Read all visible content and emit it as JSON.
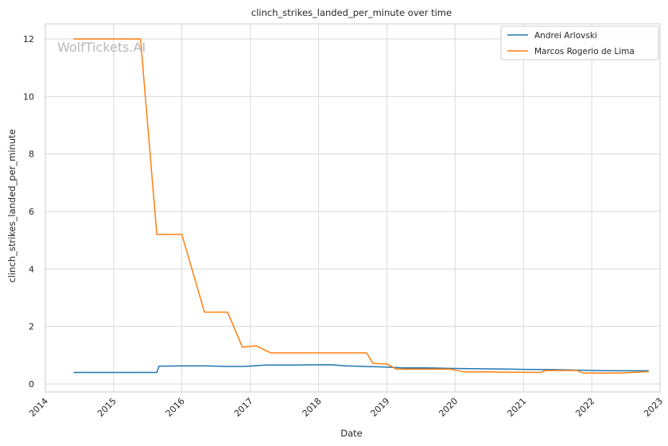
{
  "chart_data": {
    "type": "line",
    "title": "clinch_strikes_landed_per_minute over time",
    "xlabel": "Date",
    "ylabel": "clinch_strikes_landed_per_minute",
    "watermark": "WolfTickets.AI",
    "xlim": [
      "2014-01-01",
      "2023-01-01"
    ],
    "ylim": [
      0,
      12
    ],
    "x_ticks": [
      "2014",
      "2015",
      "2016",
      "2017",
      "2018",
      "2019",
      "2020",
      "2021",
      "2022",
      "2023"
    ],
    "y_ticks": [
      "0",
      "2",
      "4",
      "6",
      "8",
      "10",
      "12"
    ],
    "grid": true,
    "legend_position": "top-right",
    "series": [
      {
        "name": "Andrei Arlovski",
        "color": "#1f77b4",
        "points": [
          [
            "2014-06-01",
            0.4
          ],
          [
            "2015-06-01",
            0.4
          ],
          [
            "2015-08-20",
            0.4
          ],
          [
            "2015-09-01",
            0.62
          ],
          [
            "2016-01-01",
            0.63
          ],
          [
            "2016-05-01",
            0.63
          ],
          [
            "2016-09-01",
            0.61
          ],
          [
            "2016-12-01",
            0.61
          ],
          [
            "2017-04-01",
            0.66
          ],
          [
            "2017-09-01",
            0.66
          ],
          [
            "2018-03-01",
            0.67
          ],
          [
            "2018-06-01",
            0.63
          ],
          [
            "2018-09-01",
            0.61
          ],
          [
            "2019-01-01",
            0.59
          ],
          [
            "2019-04-01",
            0.56
          ],
          [
            "2019-08-01",
            0.56
          ],
          [
            "2020-01-01",
            0.54
          ],
          [
            "2020-10-01",
            0.52
          ],
          [
            "2021-01-01",
            0.51
          ],
          [
            "2021-06-01",
            0.5
          ],
          [
            "2022-01-01",
            0.47
          ],
          [
            "2022-06-01",
            0.46
          ],
          [
            "2022-11-01",
            0.46
          ]
        ]
      },
      {
        "name": "Marcos Rogerio de Lima",
        "color": "#ff7f0e",
        "points": [
          [
            "2014-06-01",
            12.0
          ],
          [
            "2015-05-25",
            12.0
          ],
          [
            "2015-08-20",
            5.2
          ],
          [
            "2016-01-01",
            5.2
          ],
          [
            "2016-05-01",
            2.5
          ],
          [
            "2016-09-01",
            2.5
          ],
          [
            "2016-11-20",
            1.28
          ],
          [
            "2017-02-01",
            1.33
          ],
          [
            "2017-04-20",
            1.08
          ],
          [
            "2018-01-01",
            1.08
          ],
          [
            "2018-09-15",
            1.08
          ],
          [
            "2018-10-20",
            0.71
          ],
          [
            "2019-01-01",
            0.7
          ],
          [
            "2019-02-20",
            0.52
          ],
          [
            "2019-12-01",
            0.52
          ],
          [
            "2020-02-20",
            0.42
          ],
          [
            "2020-06-01",
            0.42
          ],
          [
            "2021-04-01",
            0.4
          ],
          [
            "2021-05-01",
            0.47
          ],
          [
            "2021-10-15",
            0.47
          ],
          [
            "2021-11-15",
            0.38
          ],
          [
            "2022-06-01",
            0.38
          ],
          [
            "2022-11-01",
            0.43
          ]
        ]
      }
    ]
  }
}
